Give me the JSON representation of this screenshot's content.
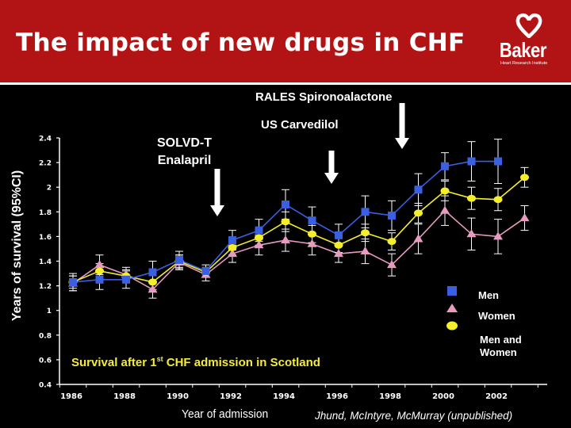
{
  "header": {
    "title": "The impact of new drugs in CHF",
    "logo_word": "Baker",
    "logo_subtitle": "Heart Research Institute",
    "logo_icon": "heart-icon",
    "bg_color": "#b21416"
  },
  "annotations": {
    "rales": "RALES Spironoalactone",
    "carvedilol": "US Carvedilol",
    "solvd_line1": "SOLVD-T",
    "solvd_line2": "Enalapril"
  },
  "subtitle": {
    "pre": "Survival after 1",
    "sup": "st",
    "post": " CHF admission in Scotland"
  },
  "citation": "Jhund, McIntyre, McMurray (unpublished)",
  "legend": {
    "men": "Men",
    "women": "Women",
    "combined_line1": "Men and",
    "combined_line2": "Women"
  },
  "chart_data": {
    "type": "line",
    "title": "Survival after 1st CHF admission in Scotland",
    "xlabel": "Year of admission",
    "ylabel": "Years of survival (95%CI)",
    "ylim": [
      0.4,
      2.4
    ],
    "yticks": [
      0.4,
      0.6,
      0.8,
      1,
      1.2,
      1.4,
      1.6,
      1.8,
      2,
      2.2,
      2.4
    ],
    "ytick_labels": [
      "0.4",
      "0.6",
      "0.8",
      "1",
      "1.2",
      "1.4",
      "1.6",
      "1.8",
      "2",
      "2.2",
      "2.4"
    ],
    "xlim": [
      1985.5,
      2003.5
    ],
    "xtick_labels": [
      "1986",
      "1988",
      "1990",
      "1992",
      "1994",
      "1996",
      "1998",
      "2000",
      "2002"
    ],
    "x": [
      1986,
      1987,
      1988,
      1989,
      1990,
      1991,
      1992,
      1993,
      1994,
      1995,
      1996,
      1997,
      1998,
      1999,
      2000,
      2001,
      2002,
      2003
    ],
    "grid": false,
    "legend_position": "right",
    "series": [
      {
        "name": "Men",
        "marker": "square",
        "color": "#3a5fe0",
        "values": [
          1.23,
          1.25,
          1.25,
          1.31,
          1.41,
          1.32,
          1.57,
          1.65,
          1.86,
          1.73,
          1.61,
          1.8,
          1.77,
          1.98,
          2.17,
          2.21,
          2.21,
          null
        ],
        "ci_half": [
          0.07,
          0.08,
          0.07,
          0.09,
          0.07,
          0.05,
          0.08,
          0.09,
          0.12,
          0.11,
          0.09,
          0.13,
          0.12,
          0.13,
          0.11,
          0.16,
          0.18,
          null
        ]
      },
      {
        "name": "Women",
        "marker": "triangle",
        "color": "#e89bc0",
        "values": [
          1.22,
          1.37,
          1.29,
          1.17,
          1.39,
          1.29,
          1.46,
          1.53,
          1.57,
          1.54,
          1.46,
          1.48,
          1.37,
          1.58,
          1.81,
          1.62,
          1.6,
          1.75
        ],
        "ci_half": [
          0.06,
          0.08,
          0.06,
          0.07,
          0.06,
          0.05,
          0.07,
          0.08,
          0.09,
          0.09,
          0.07,
          0.1,
          0.09,
          0.12,
          0.12,
          0.13,
          0.14,
          0.1
        ]
      },
      {
        "name": "Men and Women",
        "marker": "circle",
        "color": "#f5ee2a",
        "values": [
          1.23,
          1.32,
          1.28,
          1.23,
          1.4,
          1.31,
          1.51,
          1.59,
          1.72,
          1.62,
          1.53,
          1.63,
          1.56,
          1.79,
          1.97,
          1.91,
          1.9,
          2.08
        ],
        "ci_half": [
          0.05,
          0.06,
          0.05,
          0.06,
          0.05,
          0.04,
          0.06,
          0.06,
          0.08,
          0.07,
          0.06,
          0.07,
          0.07,
          0.08,
          0.08,
          0.09,
          0.09,
          0.08
        ]
      }
    ],
    "annotations": [
      {
        "text": "SOLVD-T Enalapril",
        "x": 1991,
        "type": "arrow-down"
      },
      {
        "text": "US Carvedilol",
        "x": 1996,
        "type": "arrow-down"
      },
      {
        "text": "RALES Spironoalactone",
        "x": 1999,
        "type": "arrow-down"
      }
    ]
  }
}
